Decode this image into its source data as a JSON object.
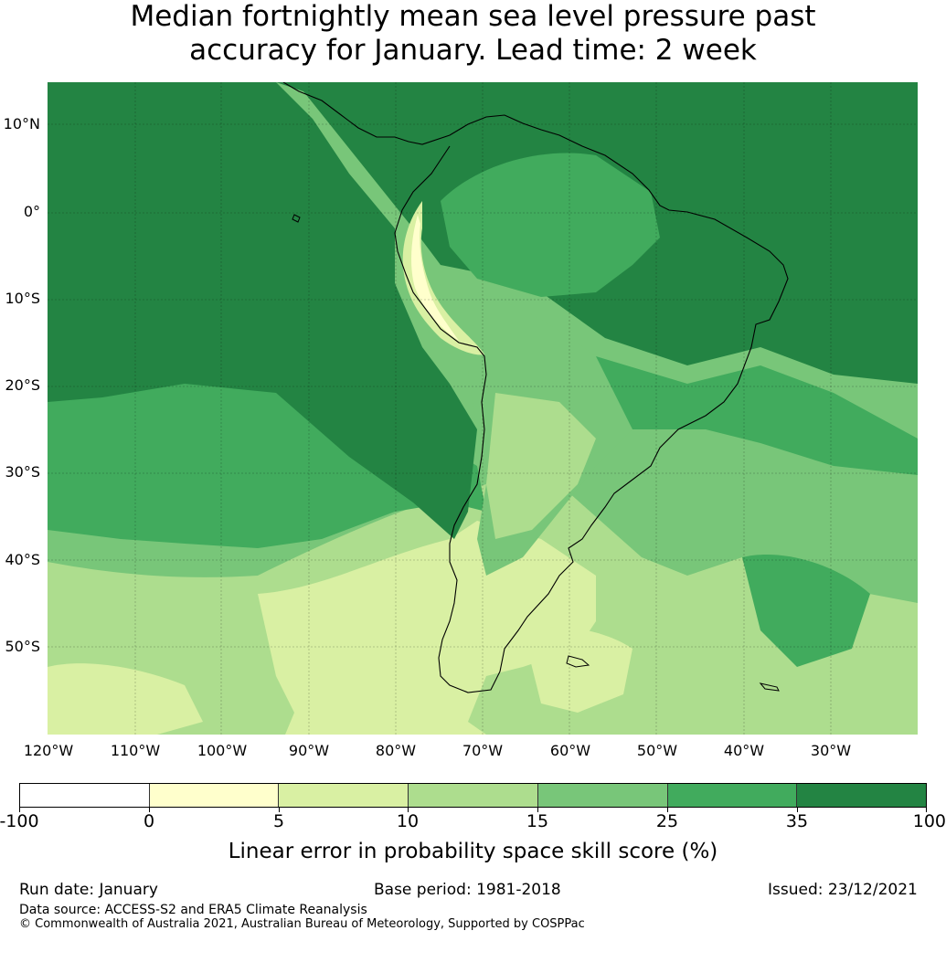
{
  "title": {
    "line1": "Median fortnightly mean sea level pressure past",
    "line2": "accuracy for January. Lead time: 2 week"
  },
  "map": {
    "lat_labels": [
      "10°N",
      "0°",
      "10°S",
      "20°S",
      "30°S",
      "40°S",
      "50°S"
    ],
    "lon_labels": [
      "120°W",
      "110°W",
      "100°W",
      "90°W",
      "80°W",
      "70°W",
      "60°W",
      "50°W",
      "40°W",
      "30°W"
    ],
    "icons": {
      "coastline": "coastline-outline",
      "graticule": "grid-lines"
    }
  },
  "colorbar": {
    "tick_labels": [
      "-100",
      "0",
      "5",
      "10",
      "15",
      "25",
      "35",
      "100"
    ],
    "colors": [
      "#ffffff",
      "#ffffcc",
      "#d9f0a3",
      "#addd8e",
      "#78c679",
      "#41ab5d",
      "#238443"
    ],
    "label": "Linear error in probability space skill score (%)"
  },
  "footer": {
    "run_date": "Run date: January",
    "base_period": "Base period: 1981-2018",
    "issued": "Issued: 23/12/2021",
    "data_source": "Data source: ACCESS-S2 and ERA5 Climate Reanalysis",
    "copyright": "© Commonwealth of Australia 2021, Australian Bureau of Meteorology, Supported by COSPPac"
  }
}
